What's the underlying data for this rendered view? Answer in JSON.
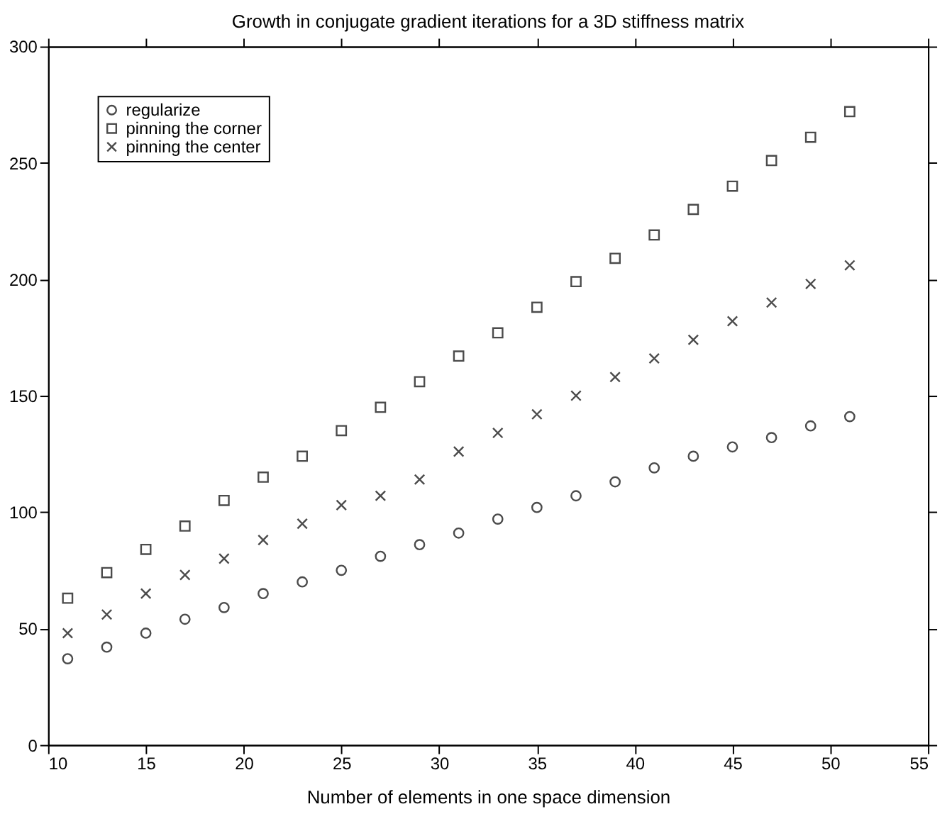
{
  "chart_data": {
    "type": "scatter",
    "title": "Growth in conjugate gradient iterations for a 3D stiffness matrix",
    "xlabel": "Number of elements in one space dimension",
    "x": [
      11,
      13,
      15,
      17,
      19,
      21,
      23,
      25,
      27,
      29,
      31,
      33,
      35,
      37,
      39,
      41,
      43,
      45,
      47,
      49,
      51
    ],
    "series": [
      {
        "name": "regularize",
        "color": "#000000",
        "marker": "circle",
        "values": [
          37,
          42,
          48,
          54,
          59,
          65,
          70,
          75,
          81,
          86,
          91,
          97,
          102,
          107,
          113,
          119,
          124,
          128,
          132,
          137,
          141
        ]
      },
      {
        "name": "pinning the corner",
        "color": "#000000",
        "marker": "square",
        "values": [
          63,
          74,
          84,
          94,
          105,
          115,
          124,
          135,
          145,
          156,
          167,
          177,
          188,
          199,
          209,
          219,
          230,
          240,
          251,
          261,
          272
        ]
      },
      {
        "name": "pinning the center",
        "color": "#000000",
        "marker": "cross",
        "values": [
          48,
          56,
          65,
          73,
          80,
          88,
          95,
          103,
          107,
          114,
          126,
          134,
          142,
          150,
          158,
          166,
          174,
          182,
          190,
          198,
          206
        ]
      }
    ],
    "xlim": [
      10,
      55
    ],
    "xticks": [
      10,
      15,
      20,
      25,
      30,
      35,
      40,
      45,
      50,
      55
    ],
    "ylim": [
      0,
      300
    ],
    "yticks": [
      0,
      50,
      100,
      150,
      200,
      250,
      300
    ],
    "grid": false,
    "legend": "top left"
  }
}
